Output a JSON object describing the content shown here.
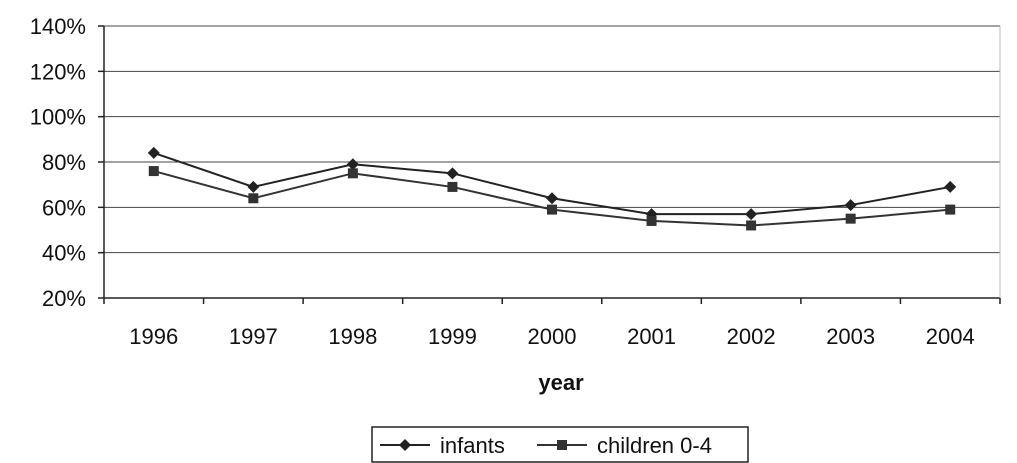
{
  "chart_data": {
    "type": "line",
    "title": "",
    "xlabel": "year",
    "ylabel": "",
    "categories": [
      "1996",
      "1997",
      "1998",
      "1999",
      "2000",
      "2001",
      "2002",
      "2003",
      "2004"
    ],
    "ylim": [
      20,
      140
    ],
    "yticks": [
      "20%",
      "40%",
      "60%",
      "80%",
      "100%",
      "120%",
      "140%"
    ],
    "grid": true,
    "legend_position": "bottom",
    "series": [
      {
        "name": "infants",
        "marker": "diamond",
        "color": "#222222",
        "values": [
          84,
          69,
          79,
          75,
          64,
          57,
          57,
          61,
          69
        ]
      },
      {
        "name": "children 0-4",
        "marker": "square",
        "color": "#333333",
        "values": [
          76,
          64,
          75,
          69,
          59,
          54,
          52,
          55,
          59
        ]
      }
    ]
  }
}
